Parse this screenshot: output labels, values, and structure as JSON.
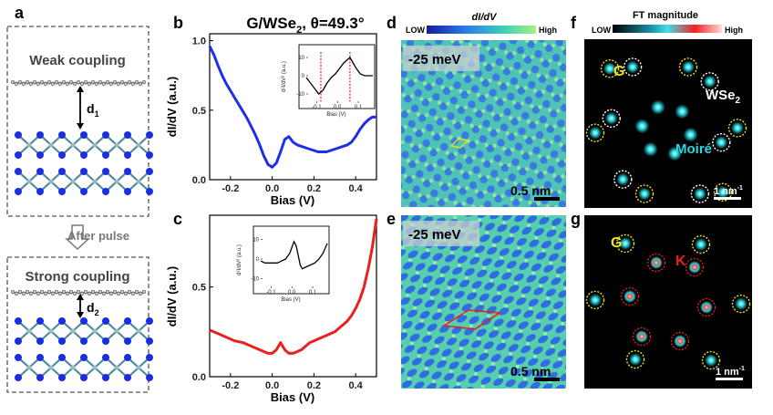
{
  "figure": {
    "panels": {
      "a": "a",
      "b": "b",
      "c": "c",
      "d": "d",
      "e": "e",
      "f": "f",
      "g": "g"
    },
    "schematic": {
      "weak_label": "Weak coupling",
      "d1": "d",
      "d1_sub": "1",
      "arrow_label": "After pulse",
      "strong_label": "Strong coupling",
      "d2": "d",
      "d2_sub": "2"
    },
    "title": {
      "main": "G/WSe",
      "sub": "2",
      "angle": ", θ=49.3°"
    },
    "stm_colorbar": {
      "low": "LOW",
      "title": "dI/dV",
      "high": "High"
    },
    "ft_colorbar": {
      "low": "LOW",
      "title": "FT magnitude",
      "high": "High"
    },
    "stm_images": {
      "d_energy": "-25 meV",
      "e_energy": "-25 meV",
      "scale": "0.5 nm"
    },
    "ft_images": {
      "label_G": "G",
      "label_WSe2": "WSe",
      "label_WSe2_sub": "2",
      "label_moire": "Moiré",
      "label_K": "K",
      "scale": "1 nm",
      "scale_sup": "-1"
    },
    "colors": {
      "curve_b": "#1f2ee8",
      "curve_c": "#e8201f",
      "inset": "#000000",
      "marker": "#e8201f",
      "ft_spot": "#28d8e0",
      "circle_G": "#f2e21a",
      "circle_W": "#ffffff",
      "circle_K": "#e8201f"
    }
  },
  "chart_data": [
    {
      "type": "line",
      "panel": "b",
      "xlabel": "Bias (V)",
      "ylabel": "dI/dV (a.u.)",
      "xlim": [
        -0.3,
        0.5
      ],
      "ylim": [
        0,
        1.05
      ],
      "xticks": [
        "-0.2",
        "0.0",
        "0.2",
        "0.4"
      ],
      "yticks": [
        "0.0",
        "0.5",
        "1.0"
      ],
      "series": [
        {
          "x": [
            -0.3,
            -0.28,
            -0.26,
            -0.24,
            -0.22,
            -0.2,
            -0.18,
            -0.16,
            -0.14,
            -0.12,
            -0.1,
            -0.08,
            -0.06,
            -0.04,
            -0.02,
            0.0,
            0.02,
            0.04,
            0.06,
            0.08,
            0.1,
            0.12,
            0.14,
            0.16,
            0.18,
            0.2,
            0.22,
            0.24,
            0.26,
            0.28,
            0.3,
            0.32,
            0.34,
            0.36,
            0.38,
            0.4,
            0.42,
            0.44,
            0.46,
            0.48,
            0.5
          ],
          "y": [
            0.96,
            0.9,
            0.82,
            0.75,
            0.69,
            0.64,
            0.59,
            0.54,
            0.49,
            0.44,
            0.38,
            0.32,
            0.25,
            0.17,
            0.11,
            0.09,
            0.12,
            0.2,
            0.29,
            0.31,
            0.27,
            0.25,
            0.24,
            0.23,
            0.22,
            0.21,
            0.2,
            0.2,
            0.2,
            0.21,
            0.22,
            0.23,
            0.24,
            0.25,
            0.27,
            0.31,
            0.36,
            0.4,
            0.43,
            0.45,
            0.45
          ]
        }
      ],
      "inset": {
        "xlabel": "Bias (V)",
        "ylabel": "d²I/dV² (a.u.)",
        "xlim": [
          -0.15,
          0.17
        ],
        "ylim": [
          -15,
          15
        ],
        "xticks": [
          "-0.1",
          "0.0",
          "0.1"
        ],
        "yticks": [
          "10",
          "0",
          "-10"
        ],
        "x": [
          -0.15,
          -0.13,
          -0.11,
          -0.09,
          -0.07,
          -0.05,
          -0.03,
          -0.01,
          0.01,
          0.03,
          0.05,
          0.06,
          0.07,
          0.09,
          0.11,
          0.13,
          0.15,
          0.17
        ],
        "y": [
          -1,
          -4,
          -7,
          -10,
          -8,
          -4,
          -1,
          1,
          4,
          7,
          9,
          10,
          8,
          4,
          1,
          0,
          0,
          0
        ],
        "markers": [
          -0.08,
          0.06
        ]
      }
    },
    {
      "type": "line",
      "panel": "c",
      "xlabel": "Bias (V)",
      "ylabel": "dI/dV (a.u.)",
      "xlim": [
        -0.3,
        0.5
      ],
      "ylim": [
        0,
        0.9
      ],
      "xticks": [
        "-0.2",
        "0.0",
        "0.2",
        "0.4"
      ],
      "yticks": [
        "0.0",
        "0.5"
      ],
      "series": [
        {
          "x": [
            -0.3,
            -0.26,
            -0.22,
            -0.18,
            -0.14,
            -0.1,
            -0.06,
            -0.02,
            0.0,
            0.02,
            0.04,
            0.06,
            0.08,
            0.1,
            0.12,
            0.14,
            0.16,
            0.18,
            0.2,
            0.22,
            0.24,
            0.26,
            0.28,
            0.3,
            0.32,
            0.34,
            0.36,
            0.38,
            0.4,
            0.42,
            0.44,
            0.46,
            0.48,
            0.5
          ],
          "y": [
            0.26,
            0.24,
            0.22,
            0.2,
            0.19,
            0.17,
            0.15,
            0.13,
            0.13,
            0.15,
            0.19,
            0.15,
            0.13,
            0.13,
            0.14,
            0.15,
            0.17,
            0.19,
            0.2,
            0.21,
            0.22,
            0.23,
            0.24,
            0.25,
            0.27,
            0.29,
            0.31,
            0.34,
            0.38,
            0.43,
            0.5,
            0.6,
            0.72,
            0.88
          ]
        }
      ],
      "inset": {
        "xlabel": "Bias (V)",
        "ylabel": "d²I/dV² (a.u.)",
        "xlim": [
          -0.15,
          0.17
        ],
        "ylim": [
          -15,
          15
        ],
        "xticks": [
          "-0.1",
          "0.0",
          "0.1"
        ],
        "yticks": [
          "10",
          "0",
          "-10"
        ],
        "x": [
          -0.15,
          -0.13,
          -0.11,
          -0.09,
          -0.07,
          -0.05,
          -0.03,
          -0.01,
          0.0,
          0.01,
          0.02,
          0.03,
          0.04,
          0.05,
          0.07,
          0.09,
          0.11,
          0.13,
          0.15,
          0.17
        ],
        "y": [
          -1,
          -2,
          -2,
          -2,
          -2,
          -1,
          0,
          3,
          6,
          9,
          7,
          2,
          -3,
          -5,
          -4,
          -3,
          -2,
          0,
          3,
          8
        ],
        "markers": []
      }
    }
  ]
}
